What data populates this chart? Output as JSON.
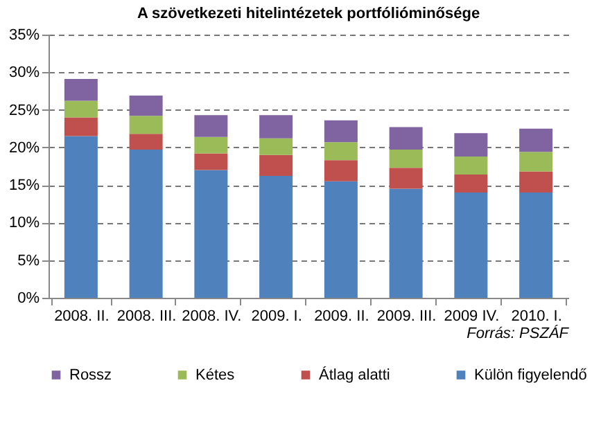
{
  "chart_data": {
    "type": "bar",
    "stacked": true,
    "title": "A szövetkezeti hitelintézetek portfólióminősége",
    "categories": [
      "2008. II.",
      "2008. III.",
      "2008. IV.",
      "2009. I.",
      "2009. II.",
      "2009. III.",
      "2009 IV.",
      "2010. I."
    ],
    "series": [
      {
        "name": "Külön figyelendő",
        "color": "#4f81bd",
        "values": [
          21.5,
          19.7,
          17.0,
          16.2,
          15.5,
          14.5,
          14.0,
          14.0
        ]
      },
      {
        "name": "Átlag alatti",
        "color": "#c0504d",
        "values": [
          2.5,
          2.1,
          2.2,
          2.8,
          2.8,
          2.8,
          2.4,
          2.8
        ]
      },
      {
        "name": "Kétes",
        "color": "#9bbb59",
        "values": [
          2.2,
          2.4,
          2.2,
          2.2,
          2.4,
          2.4,
          2.4,
          2.6
        ]
      },
      {
        "name": "Rossz",
        "color": "#8064a2",
        "values": [
          2.9,
          2.7,
          2.9,
          3.1,
          2.9,
          3.0,
          3.1,
          3.1
        ]
      }
    ],
    "ylim": [
      0,
      35
    ],
    "yticks": [
      {
        "value": 0,
        "label": "0%"
      },
      {
        "value": 5,
        "label": "5%"
      },
      {
        "value": 10,
        "label": "10%"
      },
      {
        "value": 15,
        "label": "15%"
      },
      {
        "value": 20,
        "label": "20%"
      },
      {
        "value": 25,
        "label": "25%"
      },
      {
        "value": 30,
        "label": "30%"
      },
      {
        "value": 35,
        "label": "35%"
      }
    ],
    "grid": "y",
    "legend": "bottom",
    "annotations": [
      "Forrás: PSZÁF"
    ]
  }
}
